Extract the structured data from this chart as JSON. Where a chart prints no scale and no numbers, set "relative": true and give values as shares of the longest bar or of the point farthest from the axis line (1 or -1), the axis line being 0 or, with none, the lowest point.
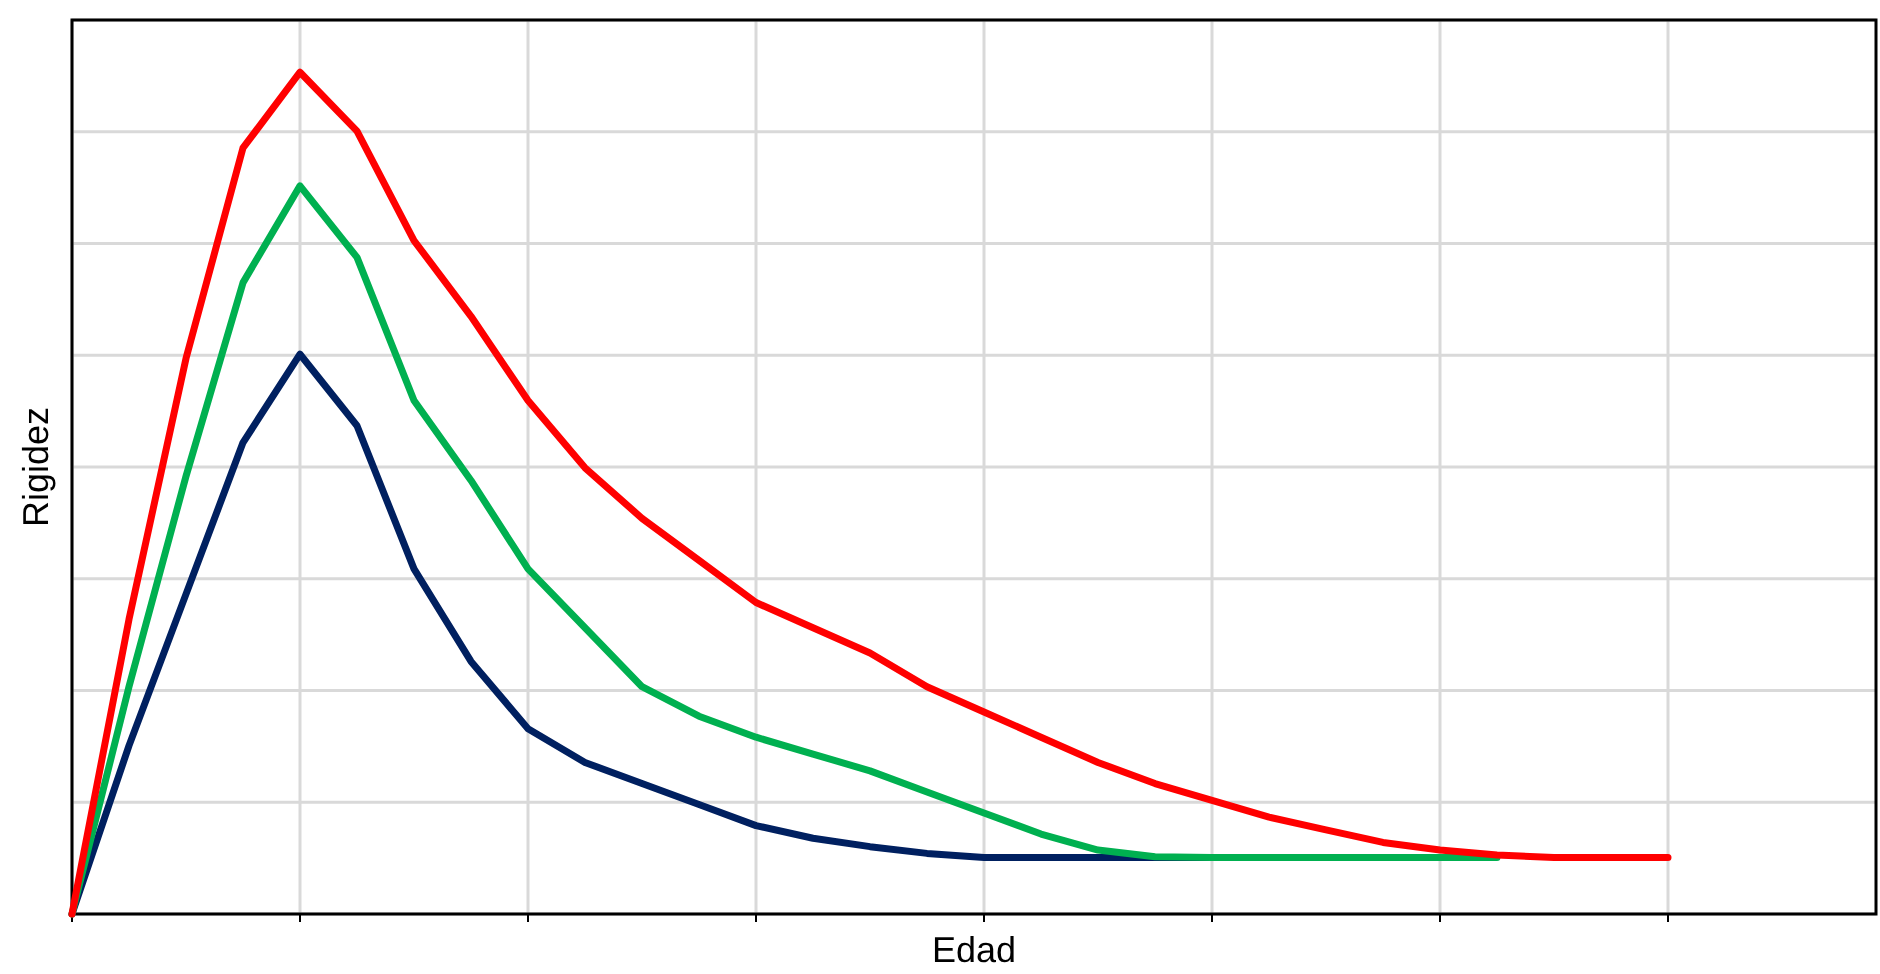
{
  "chart_data": {
    "type": "line",
    "xlabel": "Edad",
    "ylabel": "Rigidez",
    "relative": true,
    "grid": true,
    "marker": "none",
    "line_style": "solid",
    "categories": [
      null,
      null,
      null,
      null,
      null,
      null,
      null,
      null,
      null,
      null,
      null,
      null,
      null,
      null,
      null,
      null,
      null,
      null,
      null,
      null,
      null,
      null,
      null,
      null,
      null,
      null,
      null,
      null,
      null
    ],
    "series": [
      {
        "color": "#ff0000",
        "values": [
          0,
          0.35,
          0.66,
          0.91,
          1,
          0.93,
          0.8,
          0.71,
          0.61,
          0.53,
          0.47,
          0.42,
          0.37,
          0.34,
          0.31,
          0.27,
          0.24,
          0.21,
          0.18,
          0.155,
          0.135,
          0.115,
          0.1,
          0.085,
          0.076,
          0.07,
          0.067,
          0.067,
          0.067
        ]
      },
      {
        "color": "#00b050",
        "values": [
          0,
          0.27,
          0.52,
          0.75,
          0.865,
          0.78,
          0.61,
          0.515,
          0.41,
          0.34,
          0.27,
          0.235,
          0.21,
          0.19,
          0.17,
          0.145,
          0.12,
          0.095,
          0.076,
          0.068,
          0.067,
          0.067,
          0.067,
          0.067,
          0.067,
          0.067,
          null,
          null,
          null
        ]
      },
      {
        "color": "#002060",
        "values": [
          0,
          0.2,
          0.38,
          0.56,
          0.665,
          0.58,
          0.41,
          0.3,
          0.22,
          0.18,
          0.155,
          0.13,
          0.105,
          0.09,
          0.08,
          0.072,
          0.067,
          0.067,
          0.067,
          0.067,
          0.067,
          null,
          null,
          null,
          null,
          null,
          null,
          null,
          null
        ]
      }
    ]
  }
}
